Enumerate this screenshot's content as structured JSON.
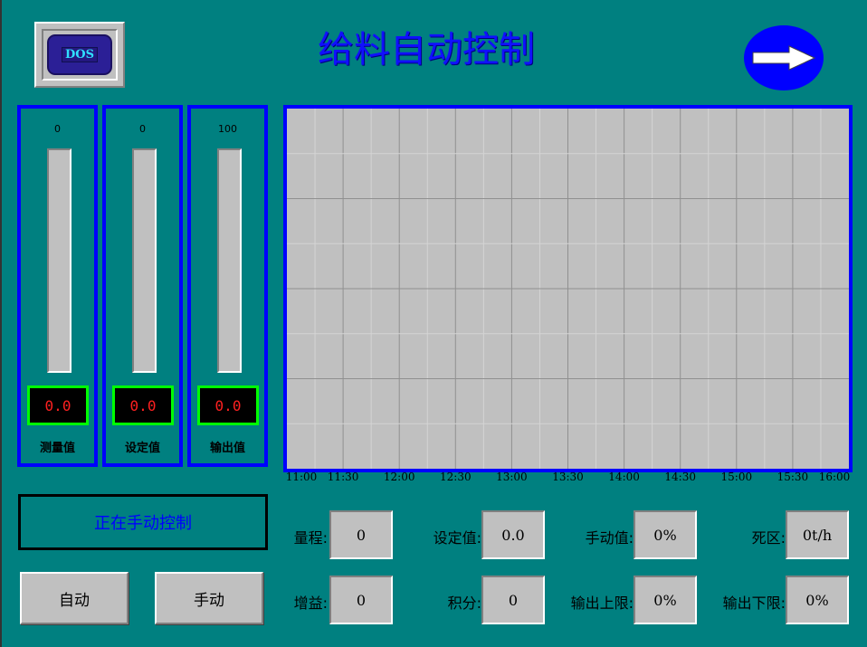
{
  "header": {
    "title": "给料自动控制",
    "dos_label": "DOS",
    "next_icon": "arrow-right-icon"
  },
  "gauges": [
    {
      "label": "测量值",
      "scale_top": "0",
      "value": "0.0",
      "fill_fraction": 0
    },
    {
      "label": "设定值",
      "scale_top": "0",
      "value": "0.0",
      "fill_fraction": 0
    },
    {
      "label": "输出值",
      "scale_top": "100",
      "value": "0.0",
      "fill_fraction": 0
    }
  ],
  "chart_data": {
    "type": "line",
    "x_ticks": [
      "11:00",
      "11:30",
      "12:00",
      "12:30",
      "13:00",
      "13:30",
      "14:00",
      "14:30",
      "15:00",
      "15:30",
      "16:00"
    ],
    "series": [],
    "grid": true
  },
  "status": "正在手动控制",
  "buttons": {
    "auto": "自动",
    "manual": "手动"
  },
  "params": [
    {
      "label": "量程:",
      "value": "0"
    },
    {
      "label": "设定值:",
      "value": "0.0"
    },
    {
      "label": "手动值:",
      "value": "0%"
    },
    {
      "label": "死区:",
      "value": "0t/h"
    },
    {
      "label": "增益:",
      "value": "0"
    },
    {
      "label": "积分:",
      "value": "0"
    },
    {
      "label": "输出上限:",
      "value": "0%"
    },
    {
      "label": "输出下限:",
      "value": "0%"
    }
  ],
  "colors": {
    "background": "#008080",
    "frame": "#0000ff",
    "readout_border": "#00ff00",
    "readout_text": "#ff2020"
  }
}
